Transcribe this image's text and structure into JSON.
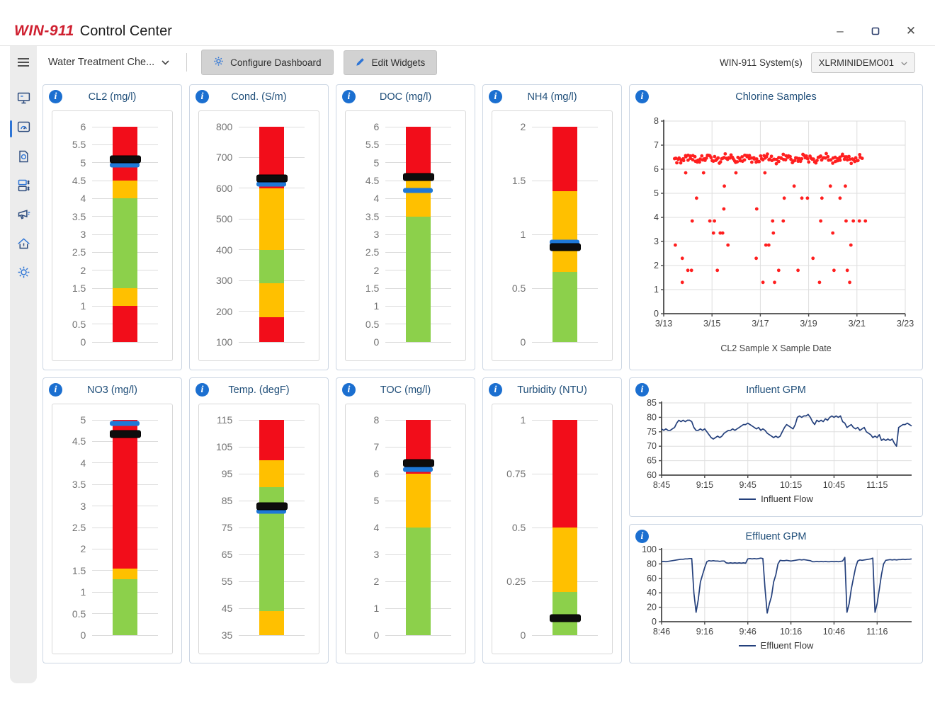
{
  "window": {
    "brand": "WIN-911",
    "title": "Control Center",
    "controls": [
      "minimize-icon",
      "maximize-icon",
      "close-icon"
    ]
  },
  "toolbar": {
    "dashboard_selector": "Water Treatment Che...",
    "configure_button": "Configure Dashboard",
    "edit_button": "Edit Widgets",
    "system_label": "WIN-911 System(s)",
    "system_value": "XLRMINIDEMO01"
  },
  "sidebar": {
    "items": [
      {
        "name": "menu",
        "icon": "hamburger-icon",
        "active": false
      },
      {
        "name": "monitoring",
        "icon": "monitor-icon",
        "active": false
      },
      {
        "name": "dashboards",
        "icon": "dashboard-gauge-icon",
        "active": true
      },
      {
        "name": "reports",
        "icon": "report-icon",
        "active": false
      },
      {
        "name": "widgets",
        "icon": "layout-widgets-icon",
        "active": false
      },
      {
        "name": "notifications",
        "icon": "megaphone-icon",
        "active": false
      },
      {
        "name": "alarms",
        "icon": "home-alarm-icon",
        "active": false
      },
      {
        "name": "settings",
        "icon": "gear-icon",
        "active": false
      }
    ]
  },
  "colors": {
    "red": "#f20d1a",
    "yellow": "#ffc000",
    "green": "#8cd04b",
    "marker_black": "#0d0d0d",
    "marker_blue": "#1e78d7",
    "title_navy": "#1f4e79",
    "line_navy": "#24407c",
    "scatter_red": "#ff1f1f",
    "accent_blue": "#2e75d6",
    "brand_red": "#cf2030"
  },
  "gauges": [
    {
      "id": "cl2",
      "title": "CL2 (mg/l)",
      "min": 0,
      "max": 6,
      "tick_step": 0.5,
      "zones": [
        {
          "from": 0,
          "to": 1,
          "color": "red"
        },
        {
          "from": 1,
          "to": 1.5,
          "color": "yellow"
        },
        {
          "from": 1.5,
          "to": 4,
          "color": "green"
        },
        {
          "from": 4,
          "to": 4.5,
          "color": "yellow"
        },
        {
          "from": 4.5,
          "to": 6,
          "color": "red"
        }
      ],
      "markers": [
        {
          "value": 4.93,
          "color": "blue"
        },
        {
          "value": 5.1,
          "color": "black"
        }
      ]
    },
    {
      "id": "cond",
      "title": "Cond. (S/m)",
      "min": 100,
      "max": 800,
      "tick_step": 100,
      "zones": [
        {
          "from": 100,
          "to": 180,
          "color": "red"
        },
        {
          "from": 180,
          "to": 290,
          "color": "yellow"
        },
        {
          "from": 290,
          "to": 400,
          "color": "green"
        },
        {
          "from": 400,
          "to": 600,
          "color": "yellow"
        },
        {
          "from": 600,
          "to": 800,
          "color": "red"
        }
      ],
      "markers": [
        {
          "value": 614,
          "color": "blue"
        },
        {
          "value": 633,
          "color": "black"
        }
      ]
    },
    {
      "id": "doc",
      "title": "DOC (mg/l)",
      "min": 0,
      "max": 6,
      "tick_step": 0.5,
      "zones": [
        {
          "from": 0,
          "to": 3.5,
          "color": "green"
        },
        {
          "from": 3.5,
          "to": 4.5,
          "color": "yellow"
        },
        {
          "from": 4.5,
          "to": 6,
          "color": "red"
        }
      ],
      "markers": [
        {
          "value": 4.22,
          "color": "blue"
        },
        {
          "value": 4.6,
          "color": "black"
        }
      ]
    },
    {
      "id": "nh4",
      "title": "NH4 (mg/l)",
      "min": 0,
      "max": 2,
      "tick_step": 0.5,
      "zones": [
        {
          "from": 0,
          "to": 0.65,
          "color": "green"
        },
        {
          "from": 0.65,
          "to": 1.4,
          "color": "yellow"
        },
        {
          "from": 1.4,
          "to": 2,
          "color": "red"
        }
      ],
      "markers": [
        {
          "value": 0.93,
          "color": "blue"
        },
        {
          "value": 0.88,
          "color": "black"
        }
      ]
    },
    {
      "id": "no3",
      "title": "NO3 (mg/l)",
      "min": 0,
      "max": 5,
      "tick_step": 0.5,
      "zones": [
        {
          "from": 0,
          "to": 1.3,
          "color": "green"
        },
        {
          "from": 1.3,
          "to": 1.55,
          "color": "yellow"
        },
        {
          "from": 1.55,
          "to": 5,
          "color": "red"
        }
      ],
      "markers": [
        {
          "value": 4.92,
          "color": "blue"
        },
        {
          "value": 4.67,
          "color": "black"
        }
      ]
    },
    {
      "id": "temp",
      "title": "Temp. (degF)",
      "min": 35,
      "max": 115,
      "tick_step": 10,
      "zones": [
        {
          "from": 35,
          "to": 44,
          "color": "yellow"
        },
        {
          "from": 44,
          "to": 90,
          "color": "green"
        },
        {
          "from": 90,
          "to": 100,
          "color": "yellow"
        },
        {
          "from": 100,
          "to": 115,
          "color": "red"
        }
      ],
      "markers": [
        {
          "value": 81,
          "color": "blue"
        },
        {
          "value": 83,
          "color": "black"
        }
      ]
    },
    {
      "id": "toc",
      "title": "TOC (mg/l)",
      "min": 0,
      "max": 8,
      "tick_step": 1,
      "zones": [
        {
          "from": 0,
          "to": 4,
          "color": "green"
        },
        {
          "from": 4,
          "to": 6,
          "color": "yellow"
        },
        {
          "from": 6,
          "to": 8,
          "color": "red"
        }
      ],
      "markers": [
        {
          "value": 6.15,
          "color": "blue"
        },
        {
          "value": 6.4,
          "color": "black"
        }
      ]
    },
    {
      "id": "turbidity",
      "title": "Turbidity (NTU)",
      "min": 0,
      "max": 1,
      "tick_step": 0.25,
      "zones": [
        {
          "from": 0,
          "to": 0.2,
          "color": "green"
        },
        {
          "from": 0.2,
          "to": 0.5,
          "color": "yellow"
        },
        {
          "from": 0.5,
          "to": 1,
          "color": "red"
        }
      ],
      "markers": [
        {
          "value": 0.08,
          "color": "black"
        }
      ]
    }
  ],
  "chart_data": [
    {
      "type": "scatter",
      "id": "chlorine",
      "title": "Chlorine Samples",
      "xlabel": "CL2 Sample X Sample Date",
      "x_range": [
        0,
        10
      ],
      "x_tick_values": [
        0,
        2,
        4,
        6,
        8,
        10
      ],
      "x_tick_labels": [
        "3/13",
        "3/15",
        "3/17",
        "3/19",
        "3/21",
        "3/23"
      ],
      "y_range": [
        0,
        8
      ],
      "y_tick_step": 1,
      "grid": true,
      "band": {
        "x_min": 0.45,
        "x_max": 8.2,
        "y_center": 6.44,
        "y_jitter": 0.2,
        "count": 160
      },
      "points": [
        [
          0.48,
          2.85
        ],
        [
          0.77,
          2.3
        ],
        [
          0.77,
          1.3
        ],
        [
          0.91,
          5.85
        ],
        [
          1.0,
          1.8
        ],
        [
          1.15,
          1.8
        ],
        [
          1.18,
          3.85
        ],
        [
          1.36,
          4.8
        ],
        [
          1.65,
          5.85
        ],
        [
          1.91,
          3.85
        ],
        [
          2.06,
          3.35
        ],
        [
          2.1,
          3.85
        ],
        [
          2.22,
          1.8
        ],
        [
          2.34,
          3.35
        ],
        [
          2.44,
          3.35
        ],
        [
          2.49,
          4.35
        ],
        [
          2.51,
          5.3
        ],
        [
          2.66,
          2.85
        ],
        [
          2.99,
          5.85
        ],
        [
          3.83,
          2.3
        ],
        [
          3.85,
          4.35
        ],
        [
          4.11,
          1.3
        ],
        [
          4.19,
          5.85
        ],
        [
          4.23,
          2.85
        ],
        [
          4.35,
          2.85
        ],
        [
          4.51,
          3.85
        ],
        [
          4.54,
          3.35
        ],
        [
          4.59,
          1.3
        ],
        [
          4.76,
          1.8
        ],
        [
          4.95,
          3.85
        ],
        [
          4.99,
          4.8
        ],
        [
          5.4,
          5.3
        ],
        [
          5.56,
          1.8
        ],
        [
          5.72,
          4.8
        ],
        [
          5.95,
          4.8
        ],
        [
          6.18,
          2.3
        ],
        [
          6.45,
          1.3
        ],
        [
          6.5,
          3.85
        ],
        [
          6.55,
          4.8
        ],
        [
          6.9,
          5.3
        ],
        [
          7.0,
          3.35
        ],
        [
          7.05,
          1.8
        ],
        [
          7.3,
          4.8
        ],
        [
          7.52,
          5.3
        ],
        [
          7.55,
          3.85
        ],
        [
          7.6,
          1.8
        ],
        [
          7.7,
          1.3
        ],
        [
          7.75,
          2.85
        ],
        [
          7.85,
          3.85
        ],
        [
          8.1,
          3.85
        ],
        [
          8.35,
          3.85
        ]
      ]
    },
    {
      "type": "line",
      "id": "influent",
      "title": "Influent GPM",
      "legend": "Influent Flow",
      "x_total": 174,
      "x_tick_interval": 30,
      "x_tick_labels": [
        "8:45",
        "9:15",
        "9:45",
        "10:15",
        "10:45",
        "11:15"
      ],
      "y_range": [
        60,
        85
      ],
      "y_tick_step": 5,
      "grid": true,
      "values": [
        76,
        75.5,
        76,
        75.5,
        75.5,
        76,
        76.5,
        78,
        79,
        78.5,
        79,
        78.5,
        79,
        79,
        78.5,
        76.5,
        75.5,
        75.5,
        76,
        75.5,
        76,
        75,
        74,
        73,
        72.5,
        73,
        73.5,
        73,
        73.5,
        74.5,
        75,
        75.5,
        75.5,
        76,
        75.5,
        76,
        76.5,
        77,
        77.5,
        77.5,
        78,
        77.5,
        77,
        76.5,
        76,
        76.5,
        75.5,
        76,
        75.5,
        74.5,
        74,
        73.5,
        73,
        73.5,
        73,
        73.5,
        75,
        76.5,
        77.5,
        77,
        76.5,
        76,
        77.5,
        80,
        80.5,
        80,
        80.5,
        80.5,
        81,
        80,
        78.5,
        77.5,
        79,
        78.5,
        79,
        78.5,
        79.5,
        79,
        80,
        80.5,
        80,
        80.5,
        80,
        80.5,
        78.5,
        78,
        76.5,
        77,
        77.5,
        76.5,
        76,
        76.5,
        75.5,
        76,
        76.5,
        75,
        74.5,
        74,
        73,
        73.5,
        73,
        74,
        72,
        72.5,
        72,
        72.5,
        72,
        72.5,
        71,
        70,
        76.5,
        77,
        77.5,
        77.5,
        78,
        77.5,
        77
      ]
    },
    {
      "type": "line",
      "id": "effluent",
      "title": "Effluent GPM",
      "legend": "Effluent Flow",
      "x_total": 174,
      "x_tick_interval": 30,
      "x_tick_labels": [
        "8:46",
        "9:16",
        "9:46",
        "10:16",
        "10:46",
        "11:16"
      ],
      "y_range": [
        0,
        100
      ],
      "y_tick_step": 20,
      "grid": true,
      "values": [
        83,
        83.5,
        83,
        83.5,
        84,
        84.5,
        85,
        85.5,
        86,
        86.5,
        86.5,
        87,
        87,
        87.5,
        87.5,
        40,
        13,
        30,
        55,
        65,
        75,
        83,
        84.5,
        84,
        84.5,
        84,
        84,
        83.5,
        84,
        84,
        81.5,
        81,
        81.5,
        81,
        81.5,
        81,
        81.5,
        81,
        81.5,
        81,
        87,
        87.5,
        87,
        87.5,
        87,
        87.5,
        88,
        87.5,
        45,
        12,
        25,
        35,
        55,
        65,
        80,
        85,
        84.5,
        84.5,
        85,
        84.5,
        84,
        84.5,
        85,
        85.5,
        86,
        85.5,
        86,
        85.5,
        85,
        84.5,
        83,
        83,
        83.5,
        83,
        83.5,
        83,
        83.5,
        83,
        83,
        83.5,
        83,
        83.5,
        83,
        83.5,
        84,
        89,
        13,
        25,
        45,
        60,
        75,
        84,
        85.5,
        85,
        85.5,
        86,
        86.5,
        87,
        88,
        13,
        25,
        45,
        65,
        80,
        85,
        85.5,
        86,
        85.5,
        86,
        85.5,
        86,
        86,
        86.5,
        86,
        86.5,
        86.5,
        87
      ]
    }
  ]
}
